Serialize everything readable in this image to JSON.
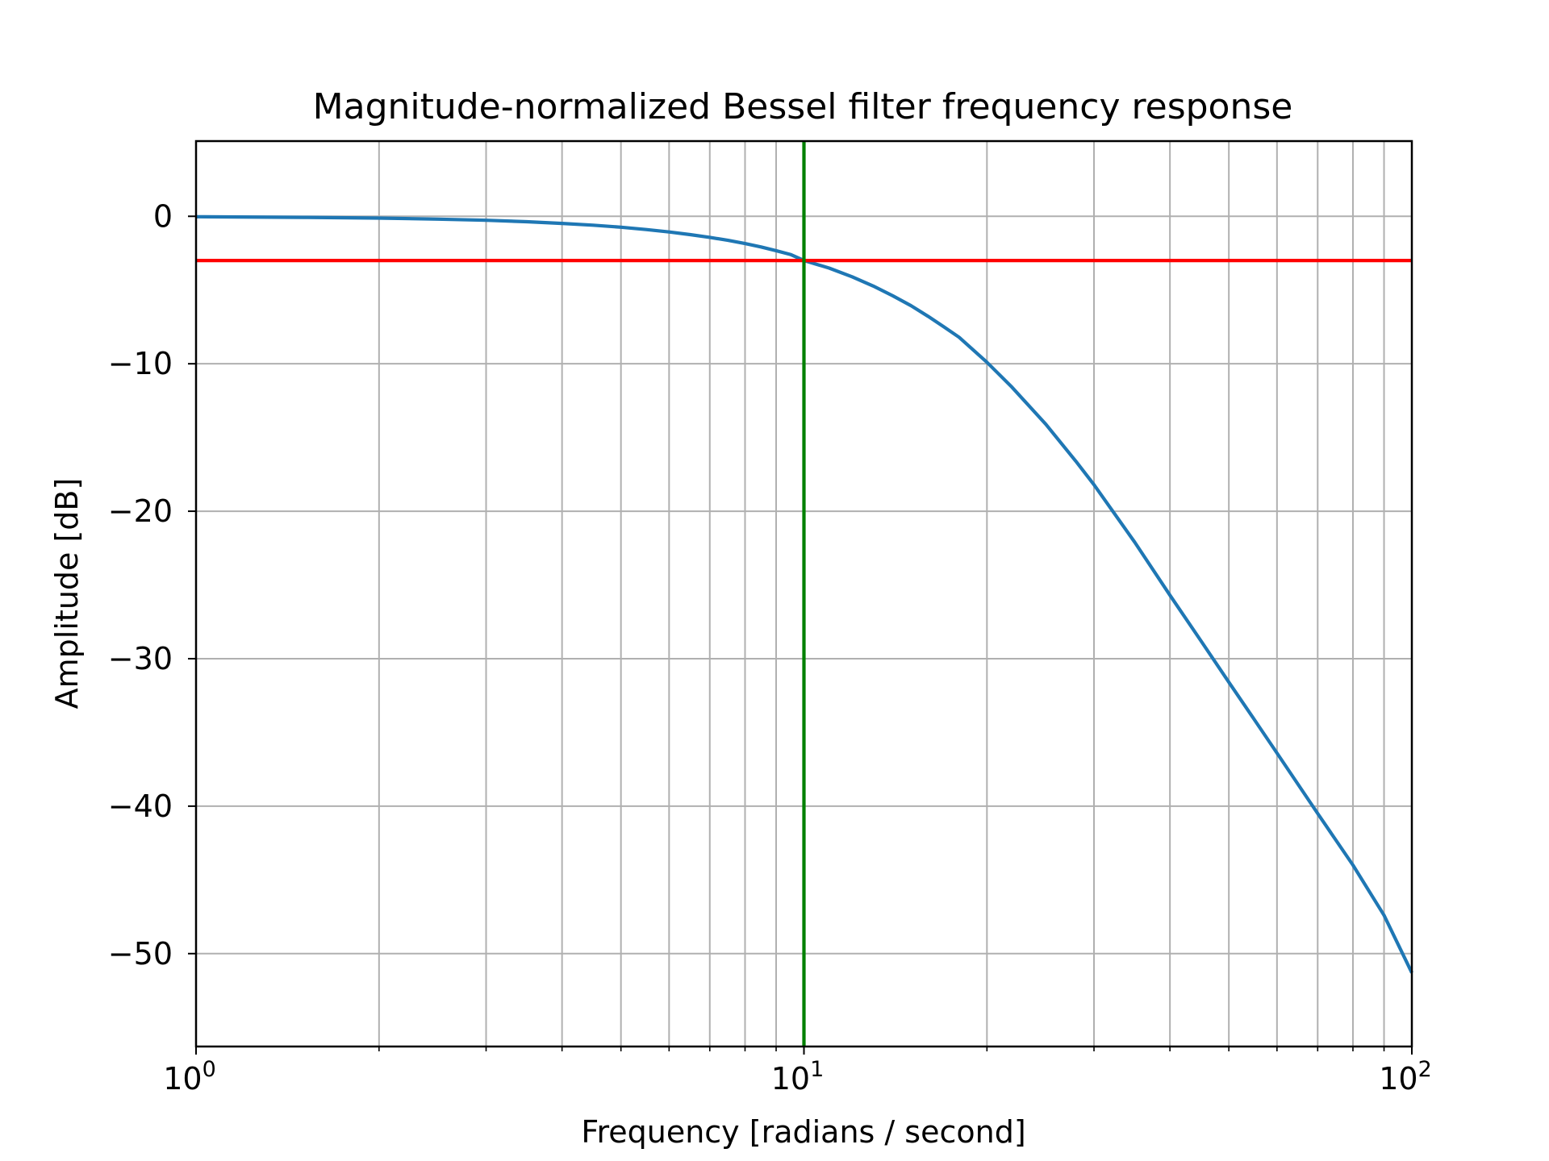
{
  "chart_data": {
    "type": "line",
    "title": "Magnitude-normalized Bessel filter frequency response",
    "xlabel": "Frequency [radians / second]",
    "ylabel": "Amplitude [dB]",
    "xscale": "log",
    "xlim": [
      1,
      100
    ],
    "ylim": [
      -56.3,
      5.1
    ],
    "grid": "both (major and minor)",
    "xticks": [
      {
        "value": 1,
        "base": "10",
        "exp": "0"
      },
      {
        "value": 10,
        "base": "10",
        "exp": "1"
      },
      {
        "value": 100,
        "base": "10",
        "exp": "2"
      }
    ],
    "yticks": [
      {
        "value": 0,
        "label": "0"
      },
      {
        "value": -10,
        "label": "−10"
      },
      {
        "value": -20,
        "label": "−20"
      },
      {
        "value": -30,
        "label": "−30"
      },
      {
        "value": -40,
        "label": "−40"
      },
      {
        "value": -50,
        "label": "−50"
      }
    ],
    "series": [
      {
        "color": "#1f77b4",
        "x": [
          1,
          1.5,
          2,
          2.5,
          3,
          3.5,
          4,
          4.5,
          5,
          5.5,
          6,
          6.5,
          7,
          7.5,
          8,
          8.5,
          9,
          9.5,
          10,
          11,
          12,
          13,
          14,
          15,
          16,
          17,
          18,
          20,
          22,
          25,
          28,
          30,
          35,
          40,
          45,
          50,
          55,
          60,
          70,
          80,
          90,
          100
        ],
        "y": [
          -0.03,
          -0.07,
          -0.12,
          -0.19,
          -0.27,
          -0.37,
          -0.48,
          -0.6,
          -0.74,
          -0.9,
          -1.06,
          -1.24,
          -1.43,
          -1.63,
          -1.85,
          -2.08,
          -2.33,
          -2.59,
          -3.0,
          -3.51,
          -4.1,
          -4.73,
          -5.39,
          -6.06,
          -6.78,
          -7.5,
          -8.2,
          -9.9,
          -11.6,
          -14.1,
          -16.6,
          -18.2,
          -22.1,
          -25.7,
          -28.8,
          -31.6,
          -34.1,
          -36.4,
          -40.5,
          -44.0,
          -47.4,
          -51.3
        ]
      },
      {
        "color": "#ff0000",
        "x": [
          1,
          100
        ],
        "y": [
          -3,
          -3
        ]
      },
      {
        "color": "#008000",
        "x": [
          10,
          10
        ],
        "y": [
          -56.3,
          5.1
        ]
      }
    ]
  }
}
